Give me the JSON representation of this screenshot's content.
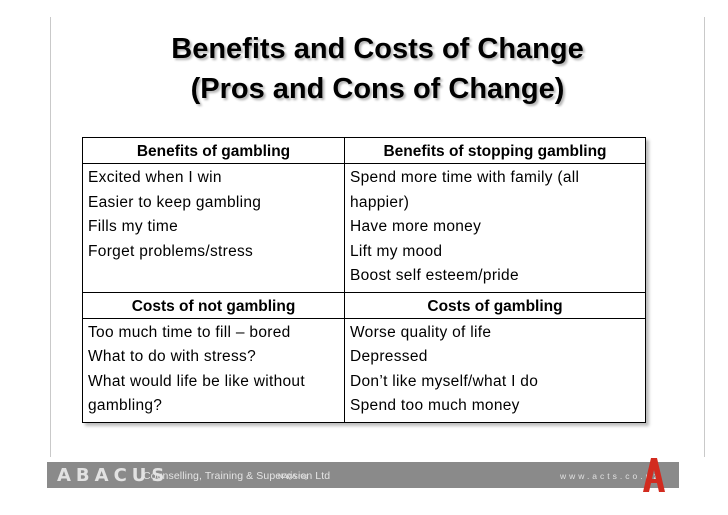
{
  "slide": {
    "title_line1": "Benefits and Costs of Change",
    "title_line2": "(Pros and Cons of Change)"
  },
  "table": {
    "sections": [
      {
        "left_header": "Benefits of gambling",
        "right_header": "Benefits of stopping gambling",
        "left_items": [
          "Excited when I win",
          "Easier to keep gambling",
          "Fills my time",
          "Forget problems/stress"
        ],
        "right_items": [
          "Spend more time with family (all",
          "happier)",
          "Have more money",
          "Lift my mood",
          "Boost self esteem/pride"
        ]
      },
      {
        "left_header": "Costs of not gambling",
        "right_header": "Costs of gambling",
        "left_items": [
          "Too much time to fill – bored",
          "What to do with stress?",
          "What would life be like without",
          "gambling?"
        ],
        "right_items": [
          "Worse quality of life",
          "Depressed",
          "Don’t like myself/what I do",
          "Spend too much money"
        ]
      }
    ]
  },
  "footer": {
    "logo": "ABACUS",
    "tagline": "Counselling, Training & Supervision Ltd",
    "accreditation": "NZQA reg",
    "website": "www.acts.co.nz",
    "brand_color": "#d22b1f",
    "bar_color": "#8a8a8a"
  }
}
